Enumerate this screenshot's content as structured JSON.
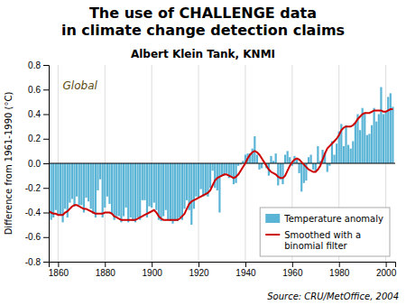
{
  "chart_data": {
    "type": "bar",
    "title": "The use of CHALLENGE data\nin climate change detection claims",
    "subtitle": "Albert Klein Tank, KNMI",
    "source": "Source: CRU/MetOffice, 2004",
    "ylabel": "Difference from 1961-1990 (°C)",
    "annotations": [
      {
        "text": "Global",
        "x": 1862,
        "y": 0.68
      }
    ],
    "x": [
      1856,
      1857,
      1858,
      1859,
      1860,
      1861,
      1862,
      1863,
      1864,
      1865,
      1866,
      1867,
      1868,
      1869,
      1870,
      1871,
      1872,
      1873,
      1874,
      1875,
      1876,
      1877,
      1878,
      1879,
      1880,
      1881,
      1882,
      1883,
      1884,
      1885,
      1886,
      1887,
      1888,
      1889,
      1890,
      1891,
      1892,
      1893,
      1894,
      1895,
      1896,
      1897,
      1898,
      1899,
      1900,
      1901,
      1902,
      1903,
      1904,
      1905,
      1906,
      1907,
      1908,
      1909,
      1910,
      1911,
      1912,
      1913,
      1914,
      1915,
      1916,
      1917,
      1918,
      1919,
      1920,
      1921,
      1922,
      1923,
      1924,
      1925,
      1926,
      1927,
      1928,
      1929,
      1930,
      1931,
      1932,
      1933,
      1934,
      1935,
      1936,
      1937,
      1938,
      1939,
      1940,
      1941,
      1942,
      1943,
      1944,
      1945,
      1946,
      1947,
      1948,
      1949,
      1950,
      1951,
      1952,
      1953,
      1954,
      1955,
      1956,
      1957,
      1958,
      1959,
      1960,
      1961,
      1962,
      1963,
      1964,
      1965,
      1966,
      1967,
      1968,
      1969,
      1970,
      1971,
      1972,
      1973,
      1974,
      1975,
      1976,
      1977,
      1978,
      1979,
      1980,
      1981,
      1982,
      1983,
      1984,
      1985,
      1986,
      1987,
      1988,
      1989,
      1990,
      1991,
      1992,
      1993,
      1994,
      1995,
      1996,
      1997,
      1998,
      1999,
      2000,
      2001,
      2002,
      2003
    ],
    "series": [
      {
        "name": "Temperature anomaly",
        "type": "bar",
        "color": "#5ab4d6",
        "values": [
          -0.39,
          -0.46,
          -0.44,
          -0.38,
          -0.42,
          -0.42,
          -0.48,
          -0.37,
          -0.44,
          -0.32,
          -0.29,
          -0.35,
          -0.27,
          -0.34,
          -0.34,
          -0.4,
          -0.28,
          -0.31,
          -0.37,
          -0.41,
          -0.44,
          -0.22,
          -0.13,
          -0.44,
          -0.36,
          -0.27,
          -0.33,
          -0.41,
          -0.46,
          -0.43,
          -0.43,
          -0.48,
          -0.43,
          -0.36,
          -0.48,
          -0.44,
          -0.47,
          -0.48,
          -0.44,
          -0.46,
          -0.3,
          -0.3,
          -0.44,
          -0.35,
          -0.36,
          -0.32,
          -0.38,
          -0.46,
          -0.47,
          -0.43,
          -0.38,
          -0.46,
          -0.47,
          -0.49,
          -0.47,
          -0.47,
          -0.44,
          -0.46,
          -0.37,
          -0.3,
          -0.38,
          -0.5,
          -0.37,
          -0.27,
          -0.28,
          -0.21,
          -0.27,
          -0.26,
          -0.27,
          -0.2,
          -0.06,
          -0.2,
          -0.22,
          -0.4,
          -0.1,
          -0.1,
          -0.08,
          -0.12,
          -0.11,
          -0.17,
          -0.16,
          -0.02,
          -0.01,
          0.02,
          0.07,
          0.08,
          0.08,
          0.12,
          0.22,
          0.07,
          -0.05,
          -0.04,
          0.01,
          -0.04,
          -0.1,
          0.06,
          0.02,
          0.08,
          -0.18,
          -0.13,
          -0.17,
          0.07,
          0.1,
          0.05,
          -0.02,
          0.06,
          0.03,
          -0.08,
          -0.23,
          -0.16,
          -0.14,
          0.05,
          0.07,
          -0.05,
          -0.07,
          0.14,
          0.02,
          0.11,
          0.09,
          -0.07,
          -0.02,
          0.18,
          0.07,
          0.16,
          0.26,
          0.32,
          0.14,
          0.31,
          0.15,
          0.12,
          0.18,
          0.33,
          0.4,
          0.27,
          0.45,
          0.41,
          0.23,
          0.24,
          0.31,
          0.45,
          0.34,
          0.4,
          0.62,
          0.4,
          0.42,
          0.54,
          0.57,
          0.46
        ]
      },
      {
        "name": "Smoothed with a\nbinomial filter",
        "type": "line",
        "color": "#cc0000",
        "values": [
          -0.39,
          -0.4,
          -0.41,
          -0.41,
          -0.42,
          -0.42,
          -0.42,
          -0.4,
          -0.39,
          -0.37,
          -0.35,
          -0.34,
          -0.34,
          -0.35,
          -0.36,
          -0.37,
          -0.37,
          -0.38,
          -0.39,
          -0.4,
          -0.41,
          -0.41,
          -0.41,
          -0.41,
          -0.4,
          -0.4,
          -0.4,
          -0.41,
          -0.43,
          -0.44,
          -0.45,
          -0.46,
          -0.46,
          -0.46,
          -0.46,
          -0.46,
          -0.46,
          -0.46,
          -0.45,
          -0.44,
          -0.43,
          -0.42,
          -0.41,
          -0.4,
          -0.39,
          -0.38,
          -0.4,
          -0.43,
          -0.45,
          -0.46,
          -0.46,
          -0.46,
          -0.46,
          -0.46,
          -0.46,
          -0.46,
          -0.45,
          -0.43,
          -0.41,
          -0.37,
          -0.33,
          -0.31,
          -0.3,
          -0.29,
          -0.28,
          -0.27,
          -0.26,
          -0.25,
          -0.24,
          -0.22,
          -0.18,
          -0.14,
          -0.12,
          -0.11,
          -0.1,
          -0.09,
          -0.09,
          -0.1,
          -0.11,
          -0.12,
          -0.11,
          -0.09,
          -0.06,
          -0.03,
          0.0,
          0.04,
          0.07,
          0.09,
          0.1,
          0.09,
          0.07,
          0.04,
          0.01,
          -0.02,
          -0.05,
          -0.07,
          -0.08,
          -0.09,
          -0.11,
          -0.12,
          -0.12,
          -0.1,
          -0.06,
          -0.02,
          0.01,
          0.03,
          0.04,
          0.03,
          0.01,
          -0.01,
          -0.03,
          -0.05,
          -0.06,
          -0.07,
          -0.07,
          -0.05,
          -0.02,
          0.03,
          0.08,
          0.12,
          0.14,
          0.16,
          0.18,
          0.2,
          0.23,
          0.27,
          0.29,
          0.3,
          0.3,
          0.3,
          0.31,
          0.33,
          0.36,
          0.38,
          0.4,
          0.41,
          0.41,
          0.41,
          0.42,
          0.43,
          0.43,
          0.43,
          0.43,
          0.42,
          0.42,
          0.43,
          0.44,
          0.44
        ]
      }
    ],
    "xlim": [
      1856,
      2004
    ],
    "xticks": [
      1860,
      1880,
      1900,
      1920,
      1940,
      1960,
      1980,
      2000
    ],
    "ylim": [
      -0.8,
      0.8
    ],
    "yticks": [
      -0.8,
      -0.6,
      -0.4,
      -0.2,
      {
        "value": 0,
        "label": "0.0"
      },
      0.2,
      0.4,
      0.6,
      0.8
    ],
    "grid": true,
    "legend": "lower right"
  }
}
